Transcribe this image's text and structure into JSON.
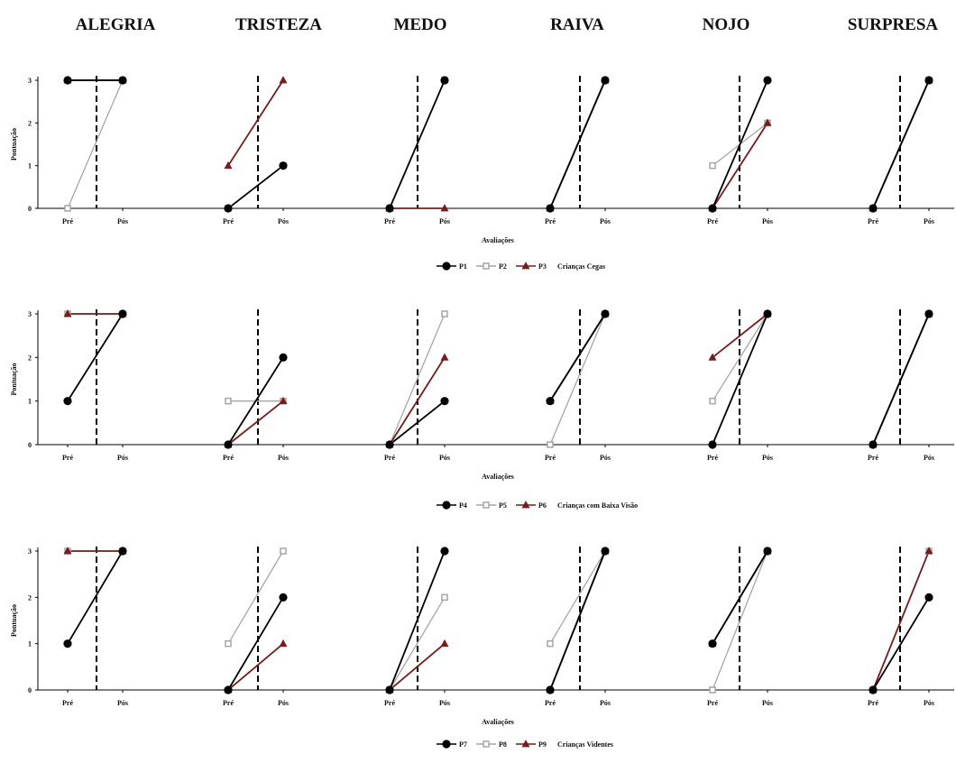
{
  "chart_data": {
    "type": "line",
    "emotions": [
      "ALEGRIA",
      "TRISTEZA",
      "MEDO",
      "RAIVA",
      "NOJO",
      "SURPRESA"
    ],
    "x": [
      "Pré",
      "Pós"
    ],
    "yticks": [
      0,
      1,
      2,
      3
    ],
    "ylim": [
      0,
      3
    ],
    "ylabel": "Pontuação",
    "xlabel": "Avaliações",
    "groups": [
      {
        "group": "Crianças Cegas",
        "series": [
          {
            "name": "P1",
            "color": "#000000",
            "marker": "diamond",
            "values": [
              [
                3,
                3
              ],
              [
                0,
                1
              ],
              [
                0,
                3
              ],
              [
                0,
                3
              ],
              [
                0,
                3
              ],
              [
                0,
                3
              ]
            ]
          },
          {
            "name": "P2",
            "color": "#a6a6a6",
            "marker": "square",
            "values": [
              [
                0,
                3
              ],
              [
                0,
                1
              ],
              [
                0,
                3
              ],
              [
                0,
                3
              ],
              [
                1,
                2
              ],
              [
                0,
                3
              ]
            ]
          },
          {
            "name": "P3",
            "color": "#7b1a1a",
            "marker": "triangle",
            "values": [
              [
                3,
                3
              ],
              [
                1,
                3
              ],
              [
                0,
                0
              ],
              [
                0,
                3
              ],
              [
                0,
                2
              ],
              [
                0,
                3
              ]
            ]
          }
        ]
      },
      {
        "group": "Crianças com Baixa Visão",
        "series": [
          {
            "name": "P4",
            "color": "#000000",
            "marker": "diamond",
            "values": [
              [
                1,
                3
              ],
              [
                0,
                2
              ],
              [
                0,
                1
              ],
              [
                1,
                3
              ],
              [
                0,
                3
              ],
              [
                0,
                3
              ]
            ]
          },
          {
            "name": "P5",
            "color": "#a6a6a6",
            "marker": "square",
            "values": [
              [
                3,
                3
              ],
              [
                1,
                1
              ],
              [
                0,
                3
              ],
              [
                0,
                3
              ],
              [
                1,
                3
              ],
              [
                0,
                3
              ]
            ]
          },
          {
            "name": "P6",
            "color": "#7b1a1a",
            "marker": "triangle",
            "values": [
              [
                3,
                3
              ],
              [
                0,
                1
              ],
              [
                0,
                2
              ],
              [
                1,
                3
              ],
              [
                2,
                3
              ],
              [
                0,
                3
              ]
            ]
          }
        ]
      },
      {
        "group": "Crianças Videntes",
        "series": [
          {
            "name": "P7",
            "color": "#000000",
            "marker": "diamond",
            "values": [
              [
                1,
                3
              ],
              [
                0,
                2
              ],
              [
                0,
                3
              ],
              [
                0,
                3
              ],
              [
                1,
                3
              ],
              [
                0,
                2
              ]
            ]
          },
          {
            "name": "P8",
            "color": "#a6a6a6",
            "marker": "square",
            "values": [
              [
                3,
                3
              ],
              [
                1,
                3
              ],
              [
                0,
                2
              ],
              [
                1,
                3
              ],
              [
                0,
                3
              ],
              [
                0,
                3
              ]
            ]
          },
          {
            "name": "P9",
            "color": "#7b1a1a",
            "marker": "triangle",
            "values": [
              [
                3,
                3
              ],
              [
                0,
                1
              ],
              [
                0,
                1
              ],
              [
                0,
                3
              ],
              [
                1,
                3
              ],
              [
                0,
                3
              ]
            ]
          }
        ]
      }
    ]
  }
}
